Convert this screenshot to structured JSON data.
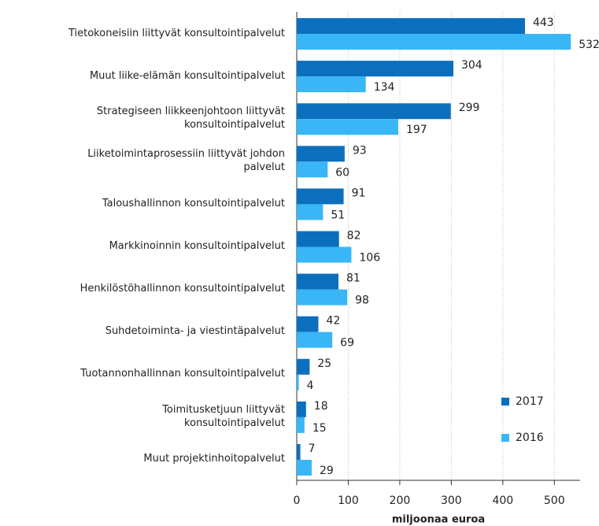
{
  "chart_data": {
    "type": "bar",
    "orientation": "horizontal",
    "xlabel": "miljoonaa euroa",
    "categories": [
      "Tietokoneisiin liittyvät konsultointipalvelut",
      "Muut liike-elämän konsultointipalvelut",
      "Strategiseen liikkeenjohtoon liittyvät\nkonsultointipalvelut",
      "Liiketoimintaprosessiin liittyvät johdon\npalvelut",
      "Taloushallinnon konsultointipalvelut",
      "Markkinoinnin konsultointipalvelut",
      "Henkilöstöhallinnon konsultointipalvelut",
      "Suhdetoiminta- ja viestintäpalvelut",
      "Tuotannonhallinnan konsultointipalvelut",
      "Toimitusketjuun liittyvät\nkonsultointipalvelut",
      "Muut projektinhoitopalvelut"
    ],
    "series": [
      {
        "name": "2017",
        "color": "#0c6fbd",
        "values": [
          443,
          304,
          299,
          93,
          91,
          82,
          81,
          42,
          25,
          18,
          7
        ]
      },
      {
        "name": "2016",
        "color": "#38b6f6",
        "values": [
          532,
          134,
          197,
          60,
          51,
          106,
          98,
          69,
          4,
          15,
          29
        ]
      }
    ],
    "xlim": [
      0,
      550
    ],
    "xticks": [
      0,
      100,
      200,
      300,
      400,
      500
    ],
    "grid": true,
    "legend": "lower right"
  }
}
